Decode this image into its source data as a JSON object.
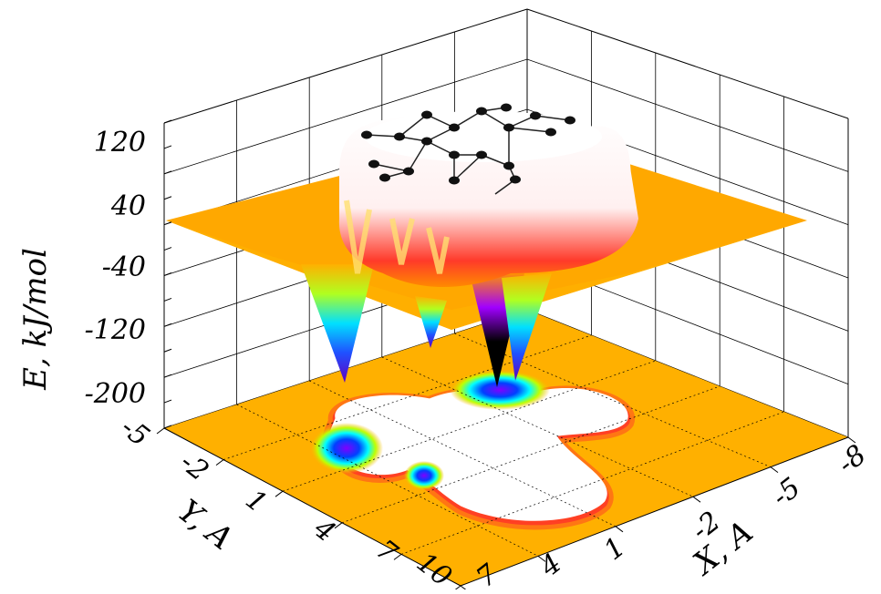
{
  "chart_data": {
    "type": "surface3d",
    "title": "",
    "zlabel": "E, kJ/mol",
    "xlabel": "X, A",
    "ylabel": "Y, A",
    "zticks": [
      "120",
      "40",
      "-40",
      "-120",
      "-200"
    ],
    "zlim": [
      -240,
      160
    ],
    "xticks": [
      "-8",
      "-5",
      "-2",
      "1",
      "4",
      "7"
    ],
    "yticks": [
      "-5",
      "-2",
      "1",
      "4",
      "7",
      "10"
    ],
    "xlim": [
      -8,
      7
    ],
    "ylim": [
      -5,
      10
    ],
    "colormap": [
      "#ffffff",
      "#ff2020",
      "#ff8000",
      "#ffb000",
      "#c0ff00",
      "#00ffff",
      "#0040ff",
      "#8000ff",
      "#000000"
    ],
    "plateau_energy": 40,
    "wells": [
      {
        "x": -6.5,
        "y": 4.5,
        "depth": -200
      },
      {
        "x": -3.5,
        "y": 3.0,
        "depth": -110
      },
      {
        "x": -1.0,
        "y": -1.5,
        "depth": -200
      }
    ],
    "molecule_atom_count": 19,
    "grid": true
  }
}
